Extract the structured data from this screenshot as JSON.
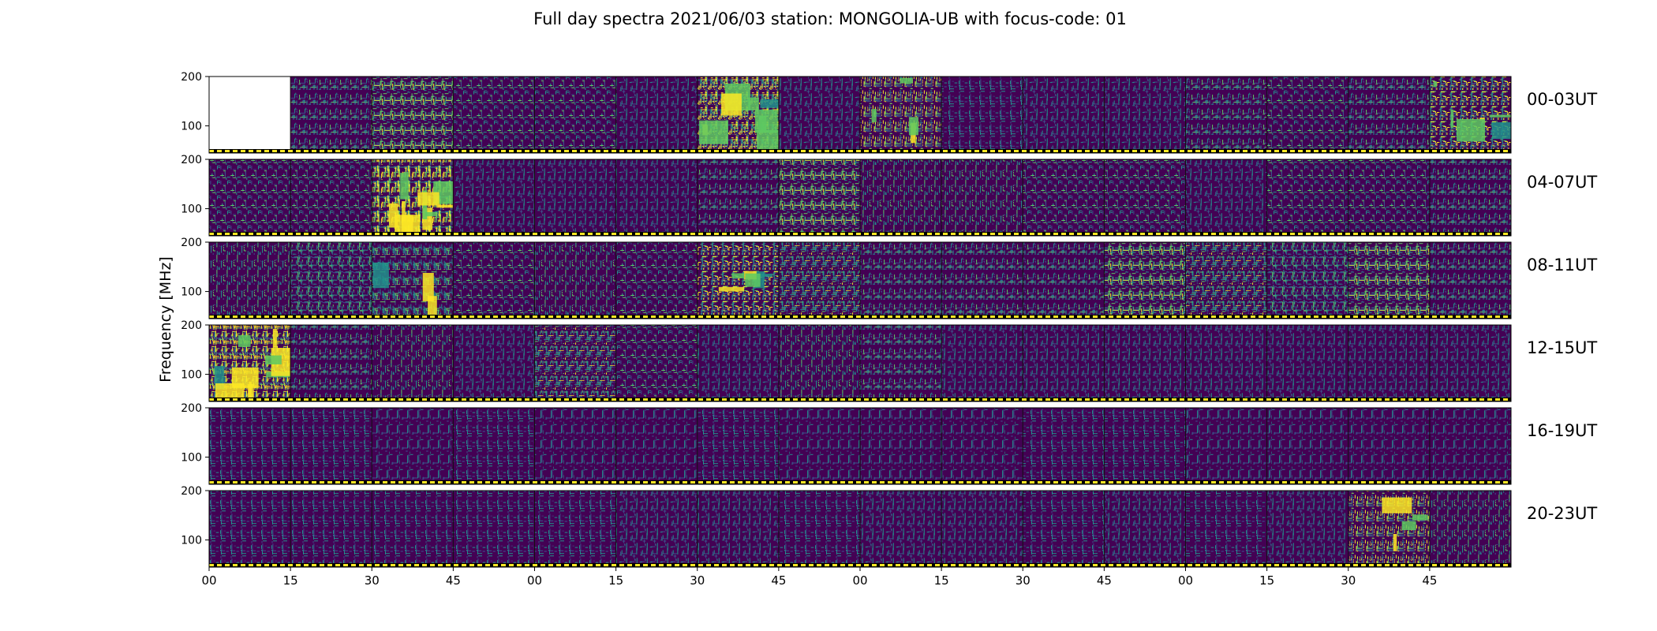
{
  "chart_data": {
    "type": "heatmap",
    "title": "Full day spectra 2021/06/03 station: MONGOLIA-UB with focus-code: 01",
    "ylabel": "Frequency [MHz]",
    "xlabel": "",
    "row_labels": [
      "00-03UT",
      "04-07UT",
      "08-11UT",
      "12-15UT",
      "16-19UT",
      "20-23UT"
    ],
    "x_tick_labels": [
      "00",
      "15",
      "30",
      "45",
      "00",
      "15",
      "30",
      "45",
      "00",
      "15",
      "30",
      "45",
      "00",
      "15",
      "30",
      "45"
    ],
    "y_tick_labels": [
      "200",
      "100"
    ],
    "ylim": [
      45,
      200
    ],
    "y_ticks": [
      200,
      100
    ],
    "segments_per_row": 16,
    "segment_minutes": 15,
    "missing_segments": [
      [
        0,
        0
      ]
    ],
    "colormap": [
      "#440154",
      "#3b528b",
      "#21918c",
      "#5ec962",
      "#fde725"
    ],
    "empty_color": "#ffffff",
    "status_bar_color": "#fde725",
    "segment_intensity": [
      [
        0.0,
        0.45,
        0.55,
        0.35,
        0.35,
        0.3,
        0.85,
        0.3,
        0.7,
        0.25,
        0.3,
        0.3,
        0.45,
        0.35,
        0.45,
        0.75
      ],
      [
        0.35,
        0.35,
        0.95,
        0.3,
        0.3,
        0.3,
        0.45,
        0.55,
        0.4,
        0.4,
        0.35,
        0.35,
        0.3,
        0.35,
        0.35,
        0.45
      ],
      [
        0.4,
        0.5,
        0.65,
        0.35,
        0.4,
        0.35,
        0.75,
        0.6,
        0.45,
        0.45,
        0.45,
        0.55,
        0.6,
        0.5,
        0.55,
        0.45
      ],
      [
        0.9,
        0.45,
        0.4,
        0.3,
        0.6,
        0.35,
        0.3,
        0.4,
        0.45,
        0.3,
        0.3,
        0.3,
        0.3,
        0.3,
        0.3,
        0.3
      ],
      [
        0.25,
        0.25,
        0.2,
        0.25,
        0.2,
        0.2,
        0.25,
        0.2,
        0.2,
        0.2,
        0.25,
        0.25,
        0.2,
        0.2,
        0.2,
        0.2
      ],
      [
        0.25,
        0.25,
        0.25,
        0.25,
        0.25,
        0.3,
        0.3,
        0.25,
        0.3,
        0.3,
        0.25,
        0.3,
        0.25,
        0.3,
        0.7,
        0.4
      ]
    ]
  }
}
